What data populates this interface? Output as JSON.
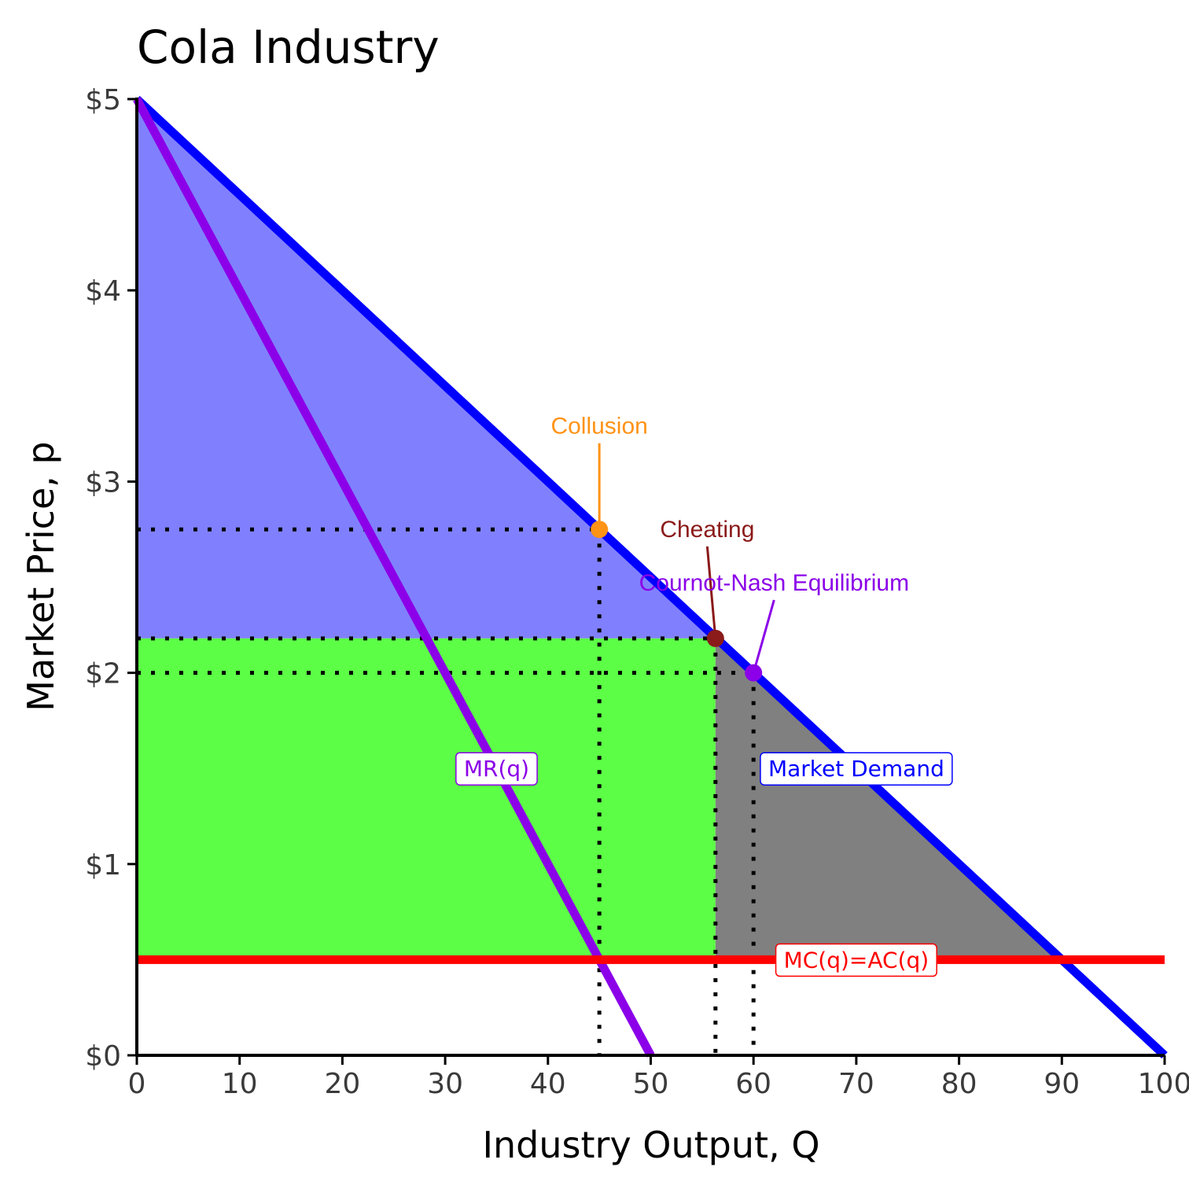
{
  "chart_data": {
    "type": "line",
    "title": "Cola Industry",
    "xlabel": "Industry Output, Q",
    "ylabel": "Market Price, p",
    "xlim": [
      0,
      100
    ],
    "ylim": [
      0,
      5
    ],
    "x_ticks": [
      0,
      10,
      20,
      30,
      40,
      50,
      60,
      70,
      80,
      90,
      100
    ],
    "y_ticks": [
      0,
      1,
      2,
      3,
      4,
      5
    ],
    "x_tick_labels": [
      "0",
      "10",
      "20",
      "30",
      "40",
      "50",
      "60",
      "70",
      "80",
      "90",
      "100"
    ],
    "y_tick_labels": [
      "$0",
      "$1",
      "$2",
      "$3",
      "$4",
      "$5"
    ],
    "grid": false,
    "series": [
      {
        "name": "Market Demand",
        "color": "#0000ff",
        "x": [
          0,
          100
        ],
        "y": [
          5,
          0
        ]
      },
      {
        "name": "MR(q)",
        "color": "#8b00e8",
        "x": [
          0,
          50
        ],
        "y": [
          5,
          0
        ]
      },
      {
        "name": "MC(q)=AC(q)",
        "color": "#ff0000",
        "x": [
          0,
          100
        ],
        "y": [
          0.5,
          0.5
        ]
      }
    ],
    "series_labels": [
      {
        "text": "Market Demand",
        "x": 70,
        "y": 1.5,
        "color": "#0000ff"
      },
      {
        "text": "MR(q)",
        "x": 35,
        "y": 1.5,
        "color": "#8b00e8"
      },
      {
        "text": "MC(q)=AC(q)",
        "x": 70,
        "y": 0.5,
        "color": "#ff0000"
      }
    ],
    "shaded_regions": [
      {
        "color": "#8080ff",
        "x": [
          0,
          0,
          56.3
        ],
        "y": [
          5,
          2.18,
          2.18
        ]
      },
      {
        "color": "#5cff46",
        "x": [
          0,
          56.3,
          56.3,
          0
        ],
        "y": [
          2.18,
          2.18,
          0.5,
          0.5
        ]
      },
      {
        "color": "#808080",
        "x": [
          56.3,
          56.3,
          90
        ],
        "y": [
          2.18,
          0.5,
          0.5
        ]
      }
    ],
    "points": [
      {
        "label": "Collusion",
        "x": 45,
        "y": 2.75,
        "color": "#ff9316",
        "label_x": 45,
        "label_y": 3.25
      },
      {
        "label": "Cheating",
        "x": 56.3,
        "y": 2.18,
        "color": "#8b1a1a",
        "label_x": 55.5,
        "label_y": 2.71
      },
      {
        "label": "Cournot-Nash Equilibrium",
        "x": 60,
        "y": 2.0,
        "color": "#8b00e8",
        "label_x": 62,
        "label_y": 2.43
      }
    ]
  }
}
